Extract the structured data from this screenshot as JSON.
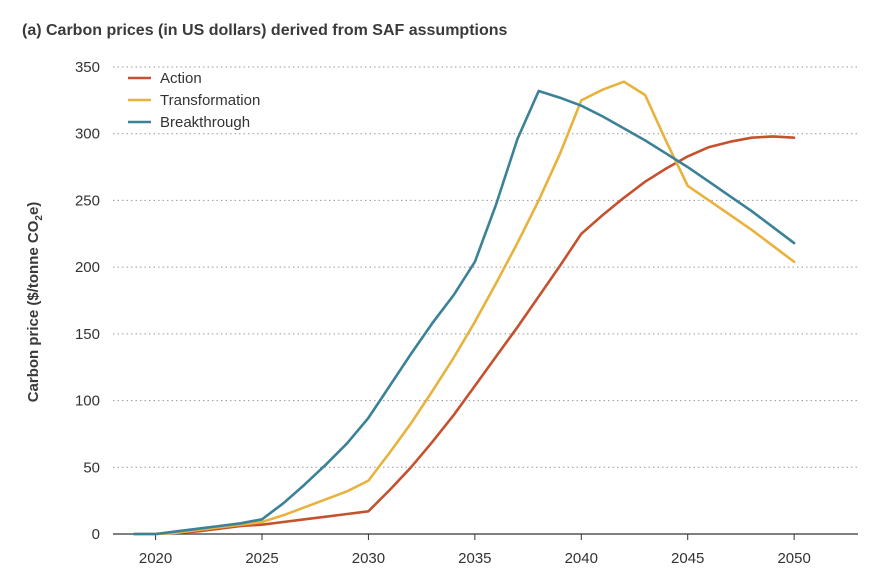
{
  "chart_data": {
    "type": "line",
    "title": "(a) Carbon prices (in US dollars) derived from SAF assumptions",
    "ylabel_main": "Carbon price ($/tonne CO",
    "ylabel_sub": "2",
    "ylabel_end": "e)",
    "xlabel": "",
    "xlim": [
      2018,
      2053
    ],
    "ylim": [
      0,
      350
    ],
    "x_ticks": [
      2020,
      2025,
      2030,
      2035,
      2040,
      2045,
      2050
    ],
    "y_ticks": [
      0,
      50,
      100,
      150,
      200,
      250,
      300,
      350
    ],
    "grid": "horizontal-dotted",
    "legend_position": "top-left",
    "series": [
      {
        "name": "Action",
        "color": "#c5512f",
        "x": [
          2019,
          2020,
          2021,
          2022,
          2023,
          2024,
          2025,
          2026,
          2027,
          2028,
          2029,
          2030,
          2031,
          2032,
          2033,
          2034,
          2035,
          2036,
          2037,
          2038,
          2039,
          2040,
          2041,
          2042,
          2043,
          2044,
          2045,
          2046,
          2047,
          2048,
          2049,
          2050
        ],
        "values": [
          0,
          0,
          1,
          2,
          4,
          6,
          7,
          9,
          11,
          13,
          15,
          17,
          33,
          50,
          69,
          89,
          111,
          133,
          155,
          178,
          201,
          225,
          239,
          252,
          264,
          274,
          283,
          290,
          294,
          297,
          298,
          297
        ]
      },
      {
        "name": "Transformation",
        "color": "#e8b23d",
        "x": [
          2019,
          2020,
          2021,
          2022,
          2023,
          2024,
          2025,
          2026,
          2027,
          2028,
          2029,
          2030,
          2031,
          2032,
          2033,
          2034,
          2035,
          2036,
          2037,
          2038,
          2039,
          2040,
          2041,
          2042,
          2043,
          2044,
          2045,
          2046,
          2047,
          2048,
          2049,
          2050
        ],
        "values": [
          0,
          0,
          1,
          3,
          5,
          7,
          9,
          14,
          20,
          26,
          32,
          40,
          61,
          83,
          107,
          132,
          159,
          188,
          218,
          250,
          285,
          325,
          333,
          339,
          329,
          294,
          261,
          250,
          239,
          228,
          216,
          204
        ]
      },
      {
        "name": "Breakthrough",
        "color": "#3b8198",
        "x": [
          2019,
          2020,
          2021,
          2022,
          2023,
          2024,
          2025,
          2026,
          2027,
          2028,
          2029,
          2030,
          2031,
          2032,
          2033,
          2034,
          2035,
          2036,
          2037,
          2038,
          2039,
          2040,
          2041,
          2042,
          2043,
          2044,
          2045,
          2046,
          2047,
          2048,
          2049,
          2050
        ],
        "values": [
          0,
          0,
          2,
          4,
          6,
          8,
          11,
          23,
          37,
          52,
          68,
          87,
          111,
          135,
          158,
          179,
          204,
          247,
          296,
          332,
          327,
          321,
          313,
          304,
          295,
          285,
          275,
          264,
          253,
          242,
          230,
          218
        ]
      }
    ]
  }
}
